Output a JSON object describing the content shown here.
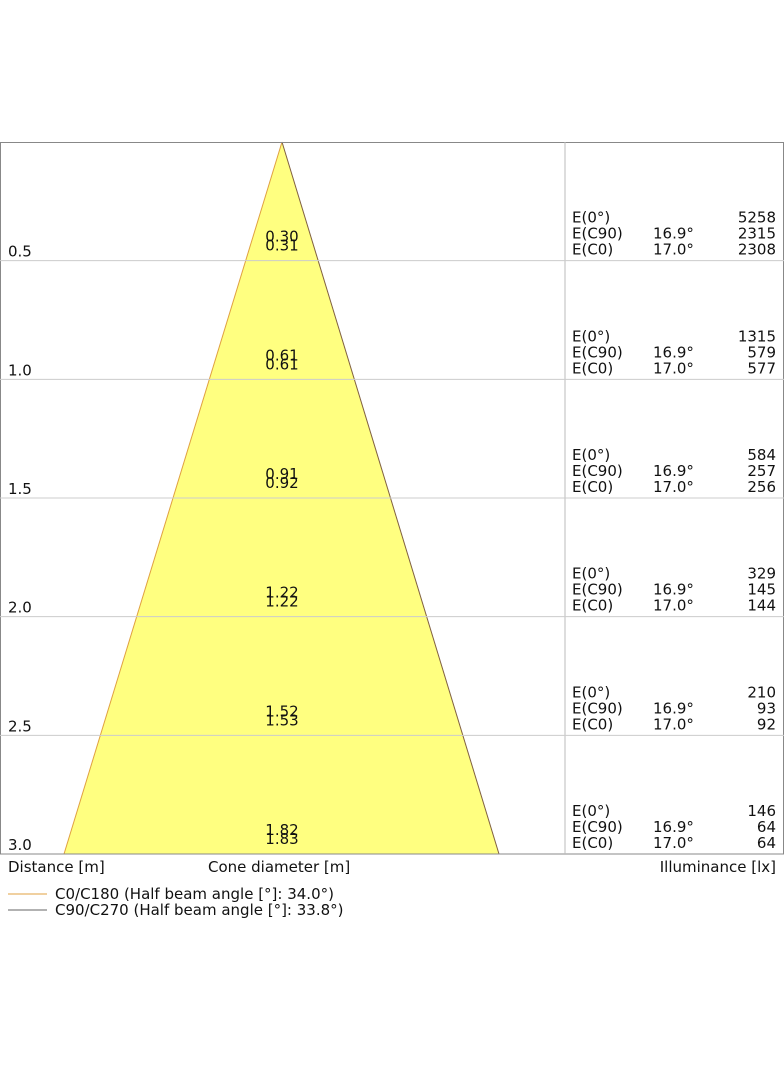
{
  "rows": [
    {
      "distance": "0.5",
      "cone": [
        "0.30",
        "0.31"
      ],
      "e0": {
        "label": "E(0°)",
        "value": "5258"
      },
      "ec90": {
        "label": "E(C90)",
        "angle": "16.9°",
        "value": "2315"
      },
      "ec0": {
        "label": "E(C0)",
        "angle": "17.0°",
        "value": "2308"
      }
    },
    {
      "distance": "1.0",
      "cone": [
        "0.61",
        "0.61"
      ],
      "e0": {
        "label": "E(0°)",
        "value": "1315"
      },
      "ec90": {
        "label": "E(C90)",
        "angle": "16.9°",
        "value": "579"
      },
      "ec0": {
        "label": "E(C0)",
        "angle": "17.0°",
        "value": "577"
      }
    },
    {
      "distance": "1.5",
      "cone": [
        "0.91",
        "0.92"
      ],
      "e0": {
        "label": "E(0°)",
        "value": "584"
      },
      "ec90": {
        "label": "E(C90)",
        "angle": "16.9°",
        "value": "257"
      },
      "ec0": {
        "label": "E(C0)",
        "angle": "17.0°",
        "value": "256"
      }
    },
    {
      "distance": "2.0",
      "cone": [
        "1.22",
        "1.22"
      ],
      "e0": {
        "label": "E(0°)",
        "value": "329"
      },
      "ec90": {
        "label": "E(C90)",
        "angle": "16.9°",
        "value": "145"
      },
      "ec0": {
        "label": "E(C0)",
        "angle": "17.0°",
        "value": "144"
      }
    },
    {
      "distance": "2.5",
      "cone": [
        "1.52",
        "1.53"
      ],
      "e0": {
        "label": "E(0°)",
        "value": "210"
      },
      "ec90": {
        "label": "E(C90)",
        "angle": "16.9°",
        "value": "93"
      },
      "ec0": {
        "label": "E(C0)",
        "angle": "17.0°",
        "value": "92"
      }
    },
    {
      "distance": "3.0",
      "cone": [
        "1.82",
        "1.83"
      ],
      "e0": {
        "label": "E(0°)",
        "value": "146"
      },
      "ec90": {
        "label": "E(C90)",
        "angle": "16.9°",
        "value": "64"
      },
      "ec0": {
        "label": "E(C0)",
        "angle": "17.0°",
        "value": "64"
      }
    }
  ],
  "footer": {
    "distance": "Distance [m]",
    "cone": "Cone diameter [m]",
    "illuminance": "Illuminance [lx]"
  },
  "legend": [
    "C0/C180 (Half beam angle [°]: 34.0°)",
    "C90/C270 (Half beam angle [°]: 33.8°)"
  ]
}
